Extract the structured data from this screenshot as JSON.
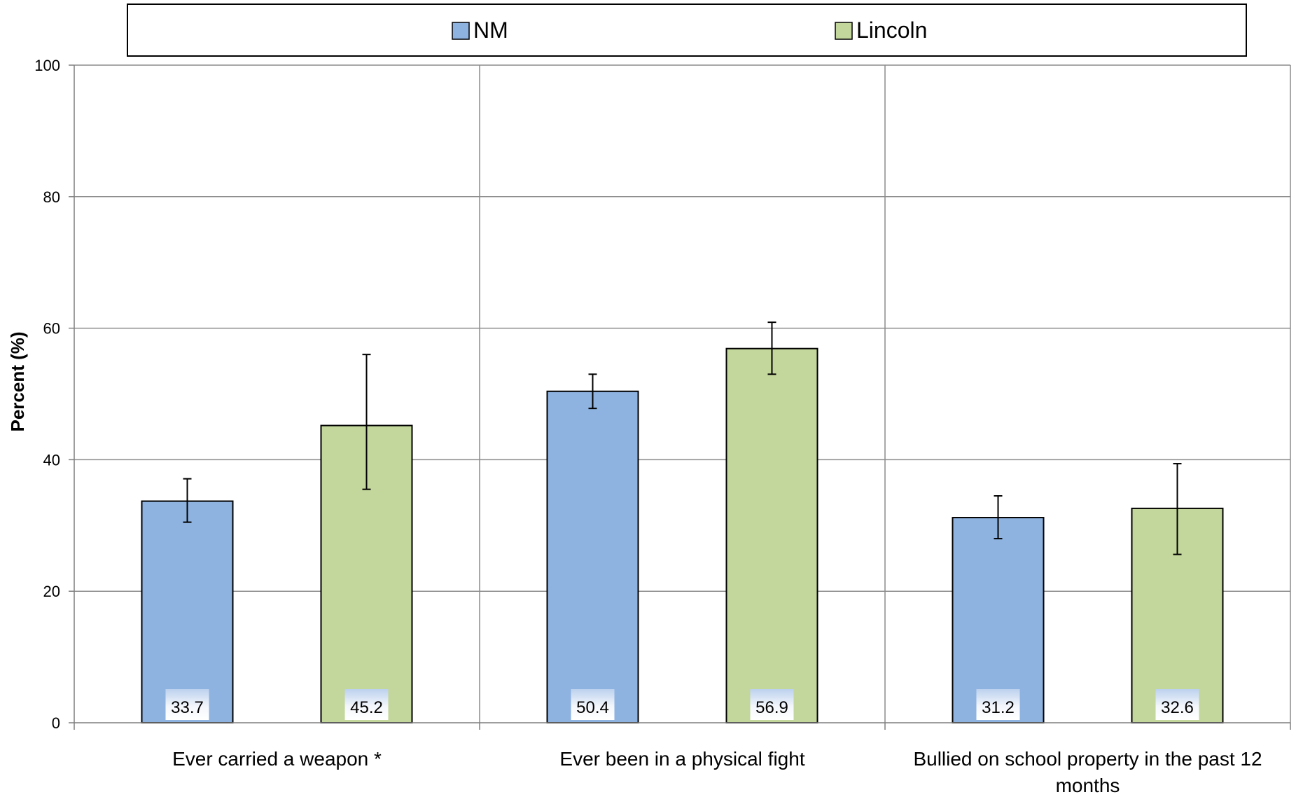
{
  "chart_data": {
    "type": "bar",
    "title": "",
    "xlabel": "",
    "ylabel": "Percent (%)",
    "ylim": [
      0,
      100
    ],
    "yticks": [
      0,
      20,
      40,
      60,
      80,
      100
    ],
    "grid": true,
    "legend_position": "top",
    "categories": [
      [
        "Ever carried a weapon *"
      ],
      [
        "Ever been in a physical fight"
      ],
      [
        "Bullied on school property in the past 12",
        "months"
      ]
    ],
    "series": [
      {
        "name": "NM",
        "color": "#8eb3e1",
        "values": [
          33.7,
          50.4,
          31.2
        ],
        "labels": [
          "33.7",
          "50.4",
          "31.2"
        ],
        "error_low": [
          30.5,
          47.8,
          28.0
        ],
        "error_high": [
          37.1,
          53.0,
          34.5
        ]
      },
      {
        "name": "Lincoln",
        "color": "#c3d69b",
        "values": [
          45.2,
          56.9,
          32.6
        ],
        "labels": [
          "45.2",
          "56.9",
          "32.6"
        ],
        "error_low": [
          35.5,
          53.0,
          25.6
        ],
        "error_high": [
          56.0,
          60.9,
          39.4
        ]
      }
    ]
  }
}
